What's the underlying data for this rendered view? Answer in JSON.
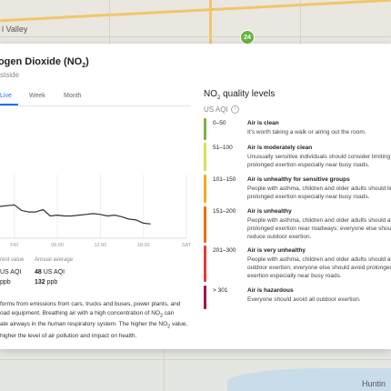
{
  "map": {
    "place_label": "l Valley",
    "bottom_place_label": "Huntin",
    "marker_value": "24",
    "marker_color": "#6cb33f"
  },
  "pollutant": {
    "title_prefix": "trogen Dioxide (NO",
    "title_sub": "2",
    "title_suffix": ")",
    "location": "stside"
  },
  "tabs": [
    {
      "label": "Live",
      "active": true
    },
    {
      "label": "Week",
      "active": false
    },
    {
      "label": "Month",
      "active": false
    }
  ],
  "chart_data": {
    "type": "line",
    "x_tick_labels": [
      "FRI",
      "06:00",
      "12:00",
      "18:00",
      "SAT"
    ],
    "series": [
      {
        "values": [
          [
            -2,
            40
          ],
          [
            0,
            42
          ],
          [
            1,
            35
          ],
          [
            2,
            33
          ],
          [
            3,
            33
          ],
          [
            4,
            36
          ],
          [
            5,
            28
          ],
          [
            6,
            29
          ],
          [
            7,
            28
          ],
          [
            8,
            28
          ],
          [
            9,
            29
          ],
          [
            10,
            30
          ],
          [
            11,
            31
          ],
          [
            12,
            30
          ],
          [
            13,
            28
          ],
          [
            14,
            29
          ],
          [
            15,
            27
          ],
          [
            16,
            24
          ],
          [
            17,
            23
          ],
          [
            18,
            19
          ],
          [
            19,
            18
          ]
        ]
      }
    ],
    "color": "#333333",
    "xlim": [
      -2,
      24
    ],
    "ylim": [
      0,
      80
    ],
    "grid": true
  },
  "stats": {
    "current_label": "rent value",
    "current_aqi": "US AQI",
    "current_ppb_unit": "ppb",
    "average_label": "Annual average",
    "average_aqi_value": "48",
    "average_aqi_unit": "US AQI",
    "average_ppb_value": "132",
    "average_ppb_unit": "ppb"
  },
  "description": {
    "line1": "forms from emissions from cars, trucks and buses, power plants, and",
    "line2_pre": "oad equipment. Breathing air with a high concentration of NO",
    "line2_sub": "2",
    "line2_post": " can",
    "line3_pre": "ate airways in the human respiratory system. The higher the NO",
    "line3_sub": "2",
    "line3_post": " value,",
    "line4": "higher the level of air pollution and impact on health."
  },
  "levels": {
    "title_prefix": "NO",
    "title_sub": "2",
    "title_suffix": " quality levels",
    "aqi_label": "US AQI",
    "items": [
      {
        "range": "0–50",
        "title": "Air is clean",
        "desc": "It's worth taking a walk or airing out the room.",
        "color": "#7cb342"
      },
      {
        "range": "51–100",
        "title": "Air is moderately clean",
        "desc": "Unusually sensitive individuals should consider limiting prolonged exertion especially near busy roads.",
        "color": "#d4e157"
      },
      {
        "range": "101–150",
        "title": "Air is unhealthy for sensitive groups",
        "desc": "People with asthma, children and older adults should limit prolonged exertion especially near busy roads.",
        "color": "#f9a825"
      },
      {
        "range": "151–200",
        "title": "Air is unhealthy",
        "desc": "People with asthma, children and older adults should avoid prolonged exertion near roadways; everyone else should reduce outdoor exertion.",
        "color": "#ef6c00"
      },
      {
        "range": "201–300",
        "title": "Air is very unhealthy",
        "desc": "People with asthma, children and older adults should avoid all outdoor exertion; everyone else should avoid prolonged exertion especially near busy roads.",
        "color": "#e53935"
      },
      {
        "range": "> 301",
        "title": "Air is hazardous",
        "desc": "Everyone should avoid all outdoor exertion.",
        "color": "#a31545"
      }
    ]
  }
}
